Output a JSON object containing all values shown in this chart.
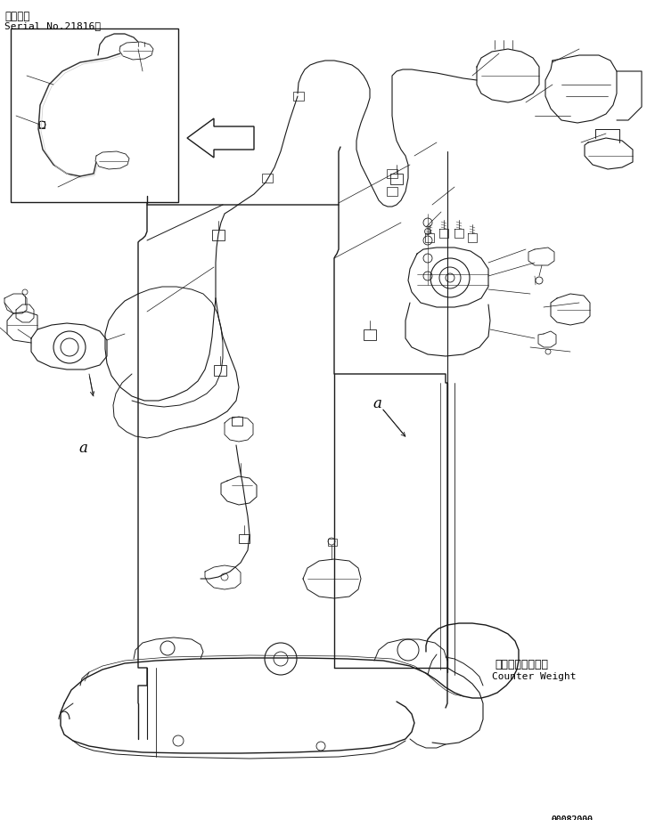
{
  "title_line1": "適用号機",
  "title_line2": "Serial No.21816～",
  "bottom_right_text": "00082000",
  "label_counter_weight_jp": "カウンタウエイト",
  "label_counter_weight_en": "Counter Weight",
  "label_a1": "a",
  "label_a2": "a",
  "bg_color": "#ffffff",
  "line_color": "#1a1a1a",
  "fig_width": 7.35,
  "fig_height": 9.21,
  "dpi": 100
}
